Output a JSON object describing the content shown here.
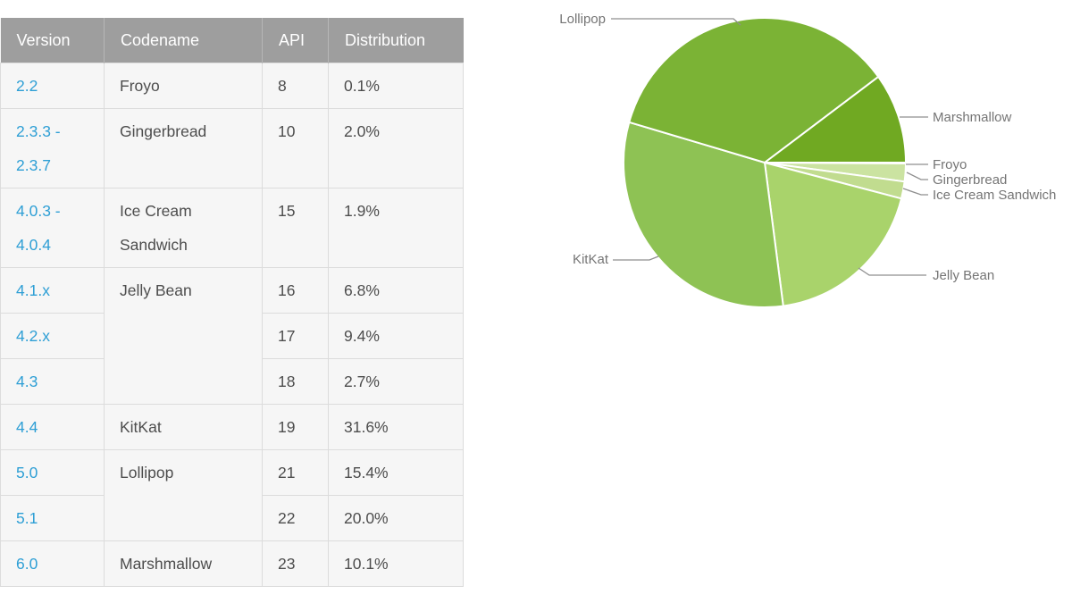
{
  "table": {
    "headers": {
      "version": "Version",
      "codename": "Codename",
      "api": "API",
      "distribution": "Distribution"
    },
    "rows": [
      {
        "version": "2.2",
        "codename": "Froyo",
        "api": "8",
        "distribution": "0.1%"
      },
      {
        "version": "2.3.3 - 2.3.7",
        "codename": "Gingerbread",
        "api": "10",
        "distribution": "2.0%"
      },
      {
        "version": "4.0.3 - 4.0.4",
        "codename": "Ice Cream Sandwich",
        "api": "15",
        "distribution": "1.9%"
      },
      {
        "version": "4.1.x",
        "codename": "Jelly Bean",
        "api": "16",
        "distribution": "6.8%"
      },
      {
        "version": "4.2.x",
        "api": "17",
        "distribution": "9.4%"
      },
      {
        "version": "4.3",
        "api": "18",
        "distribution": "2.7%"
      },
      {
        "version": "4.4",
        "codename": "KitKat",
        "api": "19",
        "distribution": "31.6%"
      },
      {
        "version": "5.0",
        "codename": "Lollipop",
        "api": "21",
        "distribution": "15.4%"
      },
      {
        "version": "5.1",
        "api": "22",
        "distribution": "20.0%"
      },
      {
        "version": "6.0",
        "codename": "Marshmallow",
        "api": "23",
        "distribution": "10.1%"
      }
    ],
    "colors": {
      "header_bg": "#9e9e9e",
      "header_text": "#ffffff",
      "link": "#2e9fd5",
      "body_text": "#4d4d4d",
      "cell_bg": "#f6f6f6",
      "border": "#dcdcdc"
    }
  },
  "chart_data": {
    "type": "pie",
    "title": "",
    "direction": "clockwise",
    "start_angle_deg": 0,
    "stroke": "#ffffff",
    "legend_position": "callout-labels",
    "slices": [
      {
        "label": "Froyo",
        "value": 0.1,
        "color": "#d8eab7"
      },
      {
        "label": "Gingerbread",
        "value": 2.0,
        "color": "#cbe3a1"
      },
      {
        "label": "Ice Cream Sandwich",
        "value": 1.9,
        "color": "#c1dc8f"
      },
      {
        "label": "Jelly Bean",
        "value": 18.9,
        "color": "#a9d36b"
      },
      {
        "label": "KitKat",
        "value": 31.6,
        "color": "#8ec254"
      },
      {
        "label": "Lollipop",
        "value": 35.4,
        "color": "#7bb335"
      },
      {
        "label": "Marshmallow",
        "value": 10.1,
        "color": "#70a922"
      }
    ],
    "label_color": "#757575"
  }
}
